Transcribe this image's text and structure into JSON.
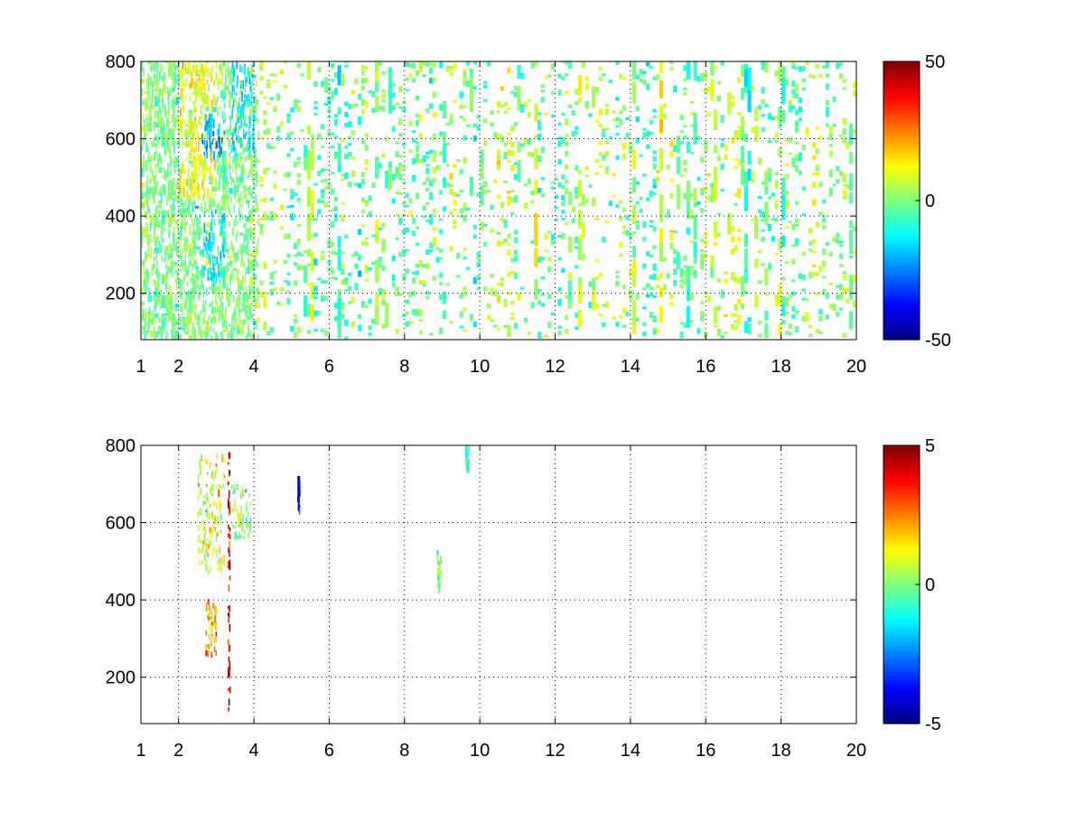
{
  "chart_data": [
    {
      "type": "heatmap",
      "title": "",
      "xlabel": "",
      "ylabel": "",
      "xlim": [
        1,
        20
      ],
      "ylim": [
        80,
        800
      ],
      "xticks": [
        1,
        2,
        4,
        6,
        8,
        10,
        12,
        14,
        16,
        18,
        20
      ],
      "yticks": [
        200,
        400,
        600,
        800
      ],
      "grid": true,
      "colormap": "jet",
      "colorbar": {
        "range": [
          -50,
          50
        ],
        "ticks": [
          50,
          0,
          -50
        ]
      },
      "features": [
        {
          "x": [
            2.0,
            3.0
          ],
          "y": [
            450,
            800
          ],
          "value": 15,
          "note": "yellow-orange dense band"
        },
        {
          "x": [
            2.6,
            3.2
          ],
          "y": [
            560,
            660
          ],
          "value": -25,
          "note": "cyan/blue cluster"
        },
        {
          "x": [
            3.4,
            4.0
          ],
          "y": [
            560,
            800
          ],
          "value": -15,
          "note": "cyan cluster"
        },
        {
          "x": [
            2.6,
            3.2
          ],
          "y": [
            230,
            420
          ],
          "value": -15,
          "note": "cyan cluster"
        }
      ]
    },
    {
      "type": "heatmap",
      "title": "",
      "xlabel": "",
      "ylabel": "",
      "xlim": [
        1,
        20
      ],
      "ylim": [
        80,
        800
      ],
      "xticks": [
        1,
        2,
        4,
        6,
        8,
        10,
        12,
        14,
        16,
        18,
        20
      ],
      "yticks": [
        200,
        400,
        600,
        800
      ],
      "grid": true,
      "colormap": "jet",
      "colorbar": {
        "range": [
          -5,
          5
        ],
        "ticks": [
          5,
          0,
          -5
        ]
      },
      "features": [
        {
          "x": [
            2.5,
            3.2
          ],
          "y": [
            470,
            780
          ],
          "value": 1,
          "note": "green/yellow cluster"
        },
        {
          "x": [
            2.7,
            3.0
          ],
          "y": [
            260,
            400
          ],
          "value": 2,
          "note": "yellow streaks"
        },
        {
          "x": [
            3.4,
            3.9
          ],
          "y": [
            560,
            700
          ],
          "value": 0,
          "note": "green streaks"
        },
        {
          "x": [
            5.15,
            5.2
          ],
          "y": [
            630,
            720
          ],
          "value": -4,
          "note": "blue marks"
        },
        {
          "x": [
            8.85,
            8.95
          ],
          "y": [
            420,
            525
          ],
          "value": 0,
          "note": "mixed vertical strip"
        },
        {
          "x": [
            9.6,
            9.7
          ],
          "y": [
            740,
            800
          ],
          "value": -0.5,
          "note": "cyan strip"
        },
        {
          "x": [
            3.3,
            3.35
          ],
          "y": [
            100,
            780
          ],
          "value": 4,
          "note": "dark red vertical line"
        }
      ]
    }
  ]
}
